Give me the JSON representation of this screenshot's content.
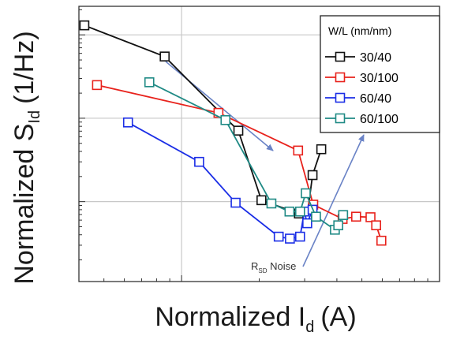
{
  "chart_data": {
    "type": "line",
    "xlabel": {
      "main": "Normalized I",
      "sub": "d",
      "unit": "(A)"
    },
    "ylabel": {
      "main": "Normalized S",
      "sub": "Id",
      "unit": "(1/Hz)"
    },
    "x_scale": "log",
    "y_scale": "log",
    "xlim": [
      0.4,
      10.0
    ],
    "ylim": [
      0.0011,
      2.2
    ],
    "grid": true,
    "tick_labels_shown": false,
    "legend": {
      "title": "W/L (nm/nm)",
      "placement": "top-right"
    },
    "series": [
      {
        "name": "30/40",
        "color": "#111111",
        "points": [
          [
            0.42,
            1.3
          ],
          [
            0.86,
            0.55
          ],
          [
            1.66,
            0.071
          ],
          [
            2.04,
            0.0104
          ],
          [
            2.85,
            0.0072
          ],
          [
            3.07,
            0.0068
          ],
          [
            3.22,
            0.0208
          ],
          [
            3.48,
            0.0425
          ]
        ]
      },
      {
        "name": "30/100",
        "color": "#e8221c",
        "points": [
          [
            0.47,
            0.25
          ],
          [
            1.39,
            0.116
          ],
          [
            2.83,
            0.041
          ],
          [
            3.24,
            0.0092
          ],
          [
            4.21,
            0.0062
          ],
          [
            4.75,
            0.0066
          ],
          [
            5.4,
            0.0065
          ],
          [
            5.68,
            0.0052
          ],
          [
            5.95,
            0.0034
          ]
        ]
      },
      {
        "name": "60/40",
        "color": "#1b2ee6",
        "points": [
          [
            0.62,
            0.089
          ],
          [
            1.17,
            0.03
          ],
          [
            1.62,
            0.0097
          ],
          [
            2.38,
            0.0038
          ],
          [
            2.63,
            0.0036
          ],
          [
            2.88,
            0.0038
          ],
          [
            2.99,
            0.0076
          ],
          [
            3.07,
            0.0055
          ],
          [
            3.22,
            0.008
          ]
        ]
      },
      {
        "name": "60/100",
        "color": "#1f8a85",
        "points": [
          [
            0.75,
            0.27
          ],
          [
            1.48,
            0.095
          ],
          [
            2.23,
            0.0095
          ],
          [
            2.62,
            0.0076
          ],
          [
            2.88,
            0.0076
          ],
          [
            3.03,
            0.0126
          ],
          [
            3.32,
            0.0066
          ],
          [
            3.93,
            0.0046
          ],
          [
            4.05,
            0.0052
          ],
          [
            4.23,
            0.0069
          ]
        ]
      }
    ],
    "annotations": [
      {
        "text": "R",
        "sub": "SD",
        "suffix": " Noise"
      }
    ]
  }
}
